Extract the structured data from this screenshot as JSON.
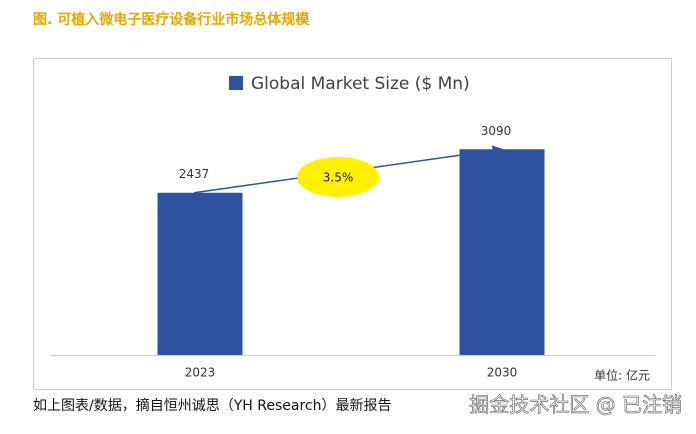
{
  "caption": "图. 可植入微电子医疗设备行业市场总体规模",
  "chart_data": {
    "type": "bar",
    "categories": [
      "2023",
      "2030"
    ],
    "series": [
      {
        "name": "Global Market Size ($ Mn)",
        "color": "#2f52a0",
        "values": [
          2437,
          3090
        ]
      }
    ],
    "ylim": [
      0,
      3800
    ],
    "annotation": "3.5%",
    "unit_note": "单位: 亿元"
  },
  "footer": "如上图表/数据，摘自恒州诚思（YH Research）最新报告",
  "watermark": "掘金技术社区 @ 已注销"
}
